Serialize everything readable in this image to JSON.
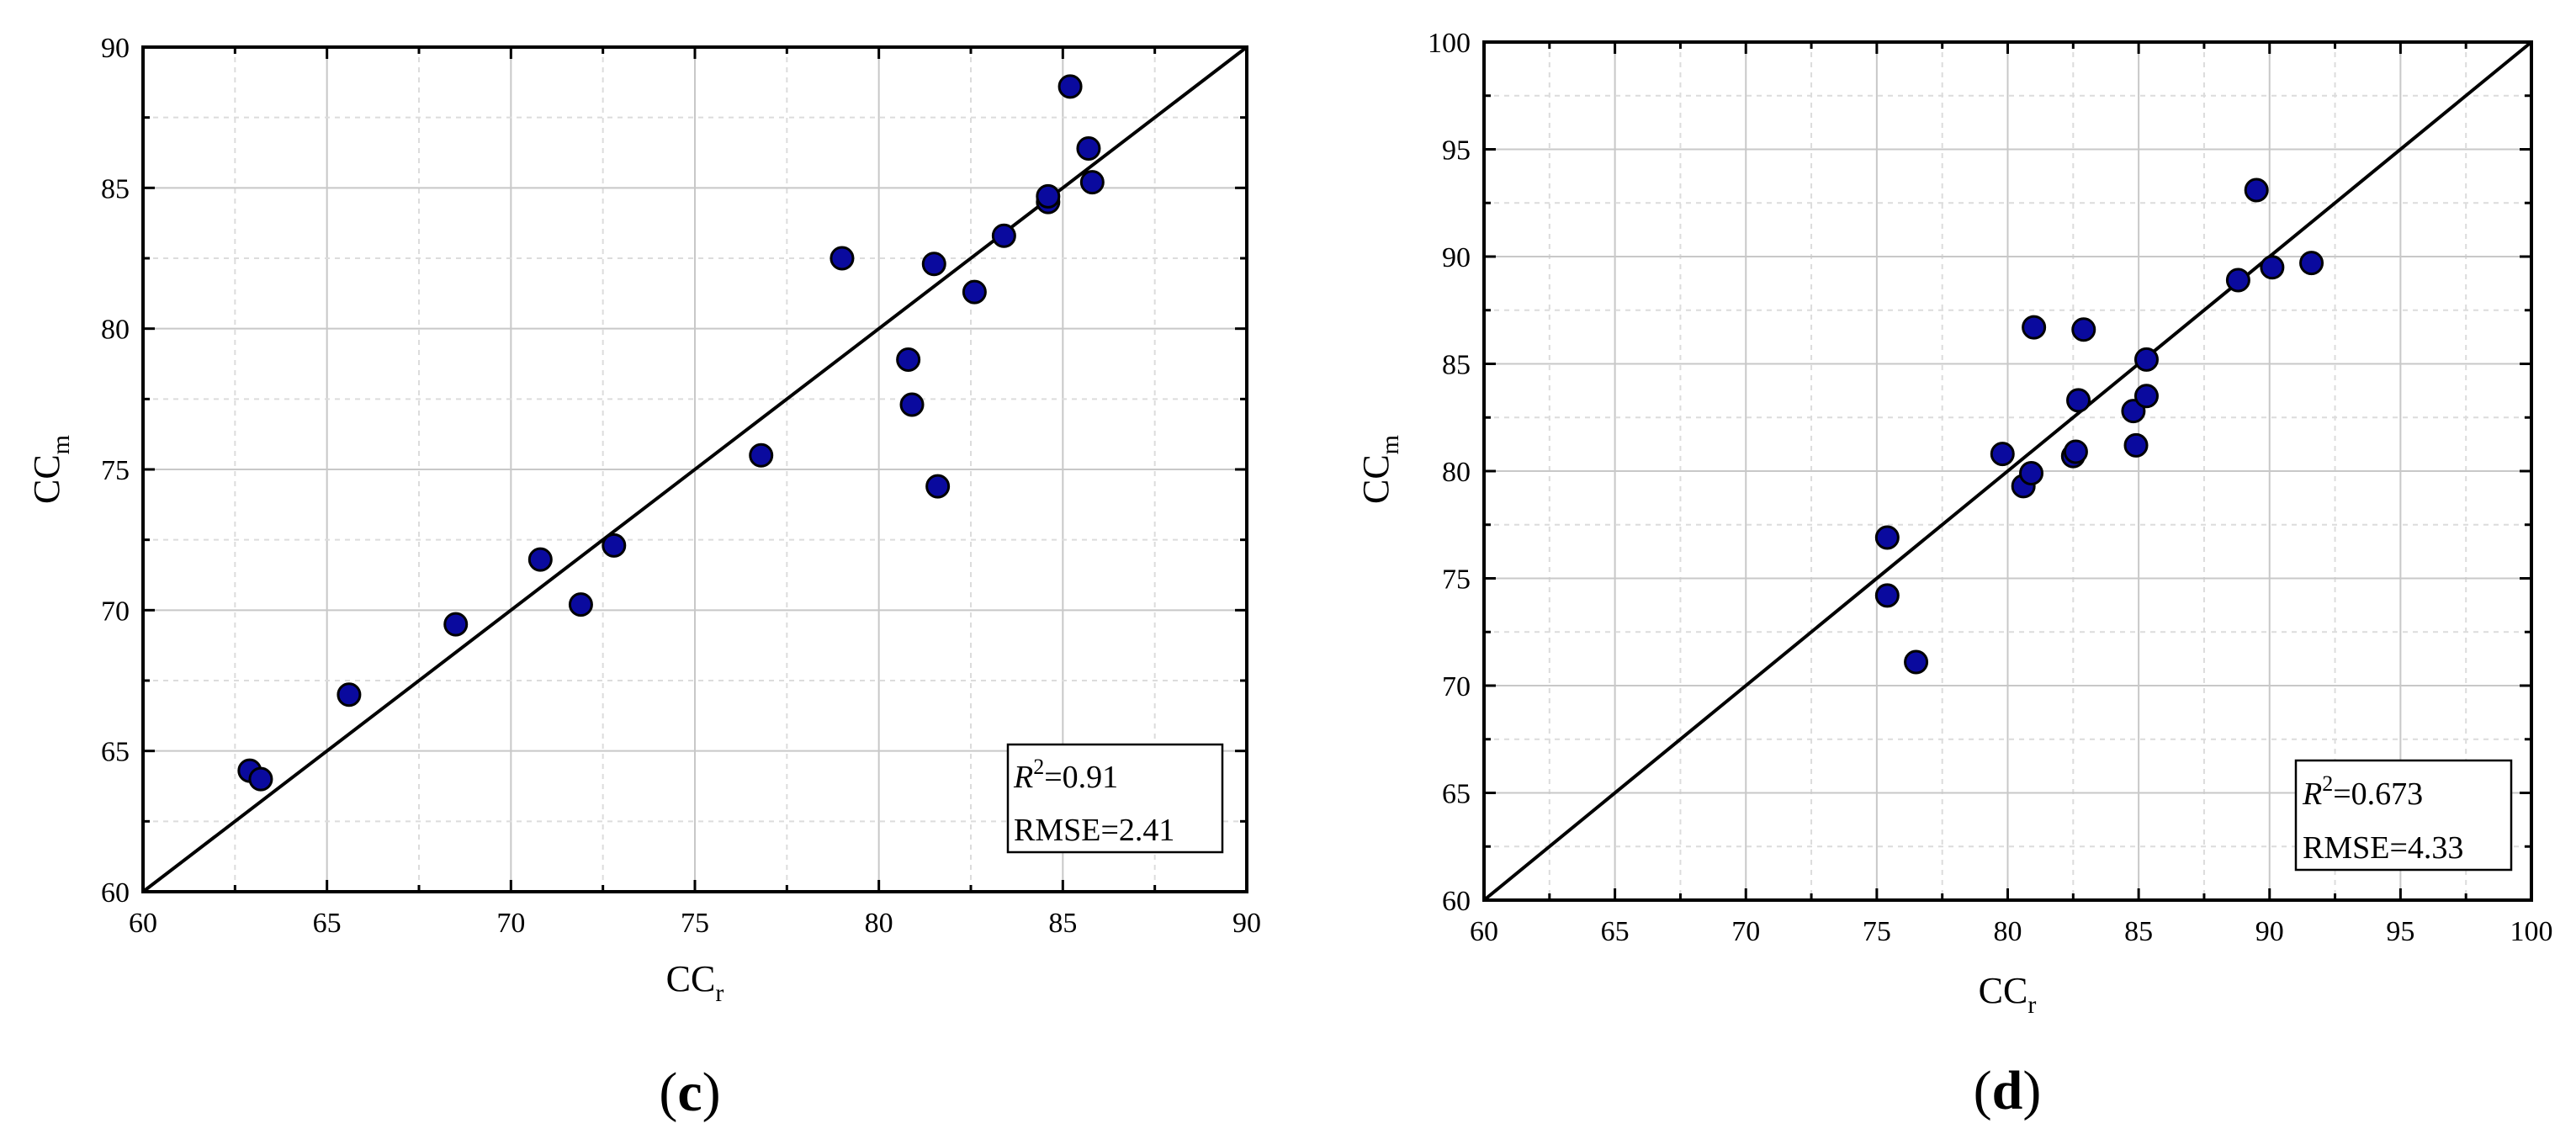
{
  "chart_data": [
    {
      "type": "scatter",
      "panel_label": "c",
      "xlabel": "CC",
      "xlabel_sub": "r",
      "ylabel": "CC",
      "ylabel_sub": "m",
      "xlim": [
        60,
        90
      ],
      "ylim": [
        60,
        90
      ],
      "x_ticks": [
        60,
        65,
        70,
        75,
        80,
        85,
        90
      ],
      "y_ticks": [
        60,
        65,
        70,
        75,
        80,
        85,
        90
      ],
      "grid": true,
      "reference_line": "1:1",
      "marker_color": "#0a0a9e",
      "stats": {
        "r2_label": "R",
        "r2_sup": "2",
        "r2_value": "=0.91",
        "rmse": "RMSE=2.41"
      },
      "points": [
        {
          "x": 62.9,
          "y": 64.3
        },
        {
          "x": 63.2,
          "y": 64.0
        },
        {
          "x": 65.6,
          "y": 67.0
        },
        {
          "x": 68.5,
          "y": 69.5
        },
        {
          "x": 70.8,
          "y": 71.8
        },
        {
          "x": 71.9,
          "y": 70.2
        },
        {
          "x": 72.8,
          "y": 72.3
        },
        {
          "x": 76.8,
          "y": 75.5
        },
        {
          "x": 79.0,
          "y": 82.5
        },
        {
          "x": 80.8,
          "y": 78.9
        },
        {
          "x": 80.9,
          "y": 77.3
        },
        {
          "x": 81.5,
          "y": 82.3
        },
        {
          "x": 81.6,
          "y": 74.4
        },
        {
          "x": 82.6,
          "y": 81.3
        },
        {
          "x": 83.4,
          "y": 83.3
        },
        {
          "x": 84.6,
          "y": 84.5
        },
        {
          "x": 84.6,
          "y": 84.7
        },
        {
          "x": 85.2,
          "y": 88.6
        },
        {
          "x": 85.7,
          "y": 86.4
        },
        {
          "x": 85.8,
          "y": 85.2
        }
      ]
    },
    {
      "type": "scatter",
      "panel_label": "d",
      "xlabel": "CC",
      "xlabel_sub": "r",
      "ylabel": "CC",
      "ylabel_sub": "m",
      "xlim": [
        60,
        100
      ],
      "ylim": [
        60,
        100
      ],
      "x_ticks": [
        60,
        65,
        70,
        75,
        80,
        85,
        90,
        95,
        100
      ],
      "y_ticks": [
        60,
        65,
        70,
        75,
        80,
        85,
        90,
        95,
        100
      ],
      "grid": true,
      "reference_line": "1:1",
      "marker_color": "#0a0a9e",
      "stats": {
        "r2_label": "R",
        "r2_sup": "2",
        "r2_value": "=0.673",
        "rmse": "RMSE=4.33"
      },
      "points": [
        {
          "x": 75.4,
          "y": 76.9
        },
        {
          "x": 75.4,
          "y": 74.2
        },
        {
          "x": 76.5,
          "y": 71.1
        },
        {
          "x": 79.8,
          "y": 80.8
        },
        {
          "x": 80.6,
          "y": 79.3
        },
        {
          "x": 80.9,
          "y": 79.9
        },
        {
          "x": 81.0,
          "y": 86.7
        },
        {
          "x": 82.5,
          "y": 80.7
        },
        {
          "x": 82.6,
          "y": 80.9
        },
        {
          "x": 82.7,
          "y": 83.3
        },
        {
          "x": 82.9,
          "y": 86.6
        },
        {
          "x": 84.8,
          "y": 82.8
        },
        {
          "x": 84.9,
          "y": 81.2
        },
        {
          "x": 85.3,
          "y": 85.2
        },
        {
          "x": 85.3,
          "y": 83.5
        },
        {
          "x": 88.8,
          "y": 88.9
        },
        {
          "x": 89.5,
          "y": 93.1
        },
        {
          "x": 90.1,
          "y": 89.5
        },
        {
          "x": 91.6,
          "y": 89.7
        }
      ]
    }
  ]
}
